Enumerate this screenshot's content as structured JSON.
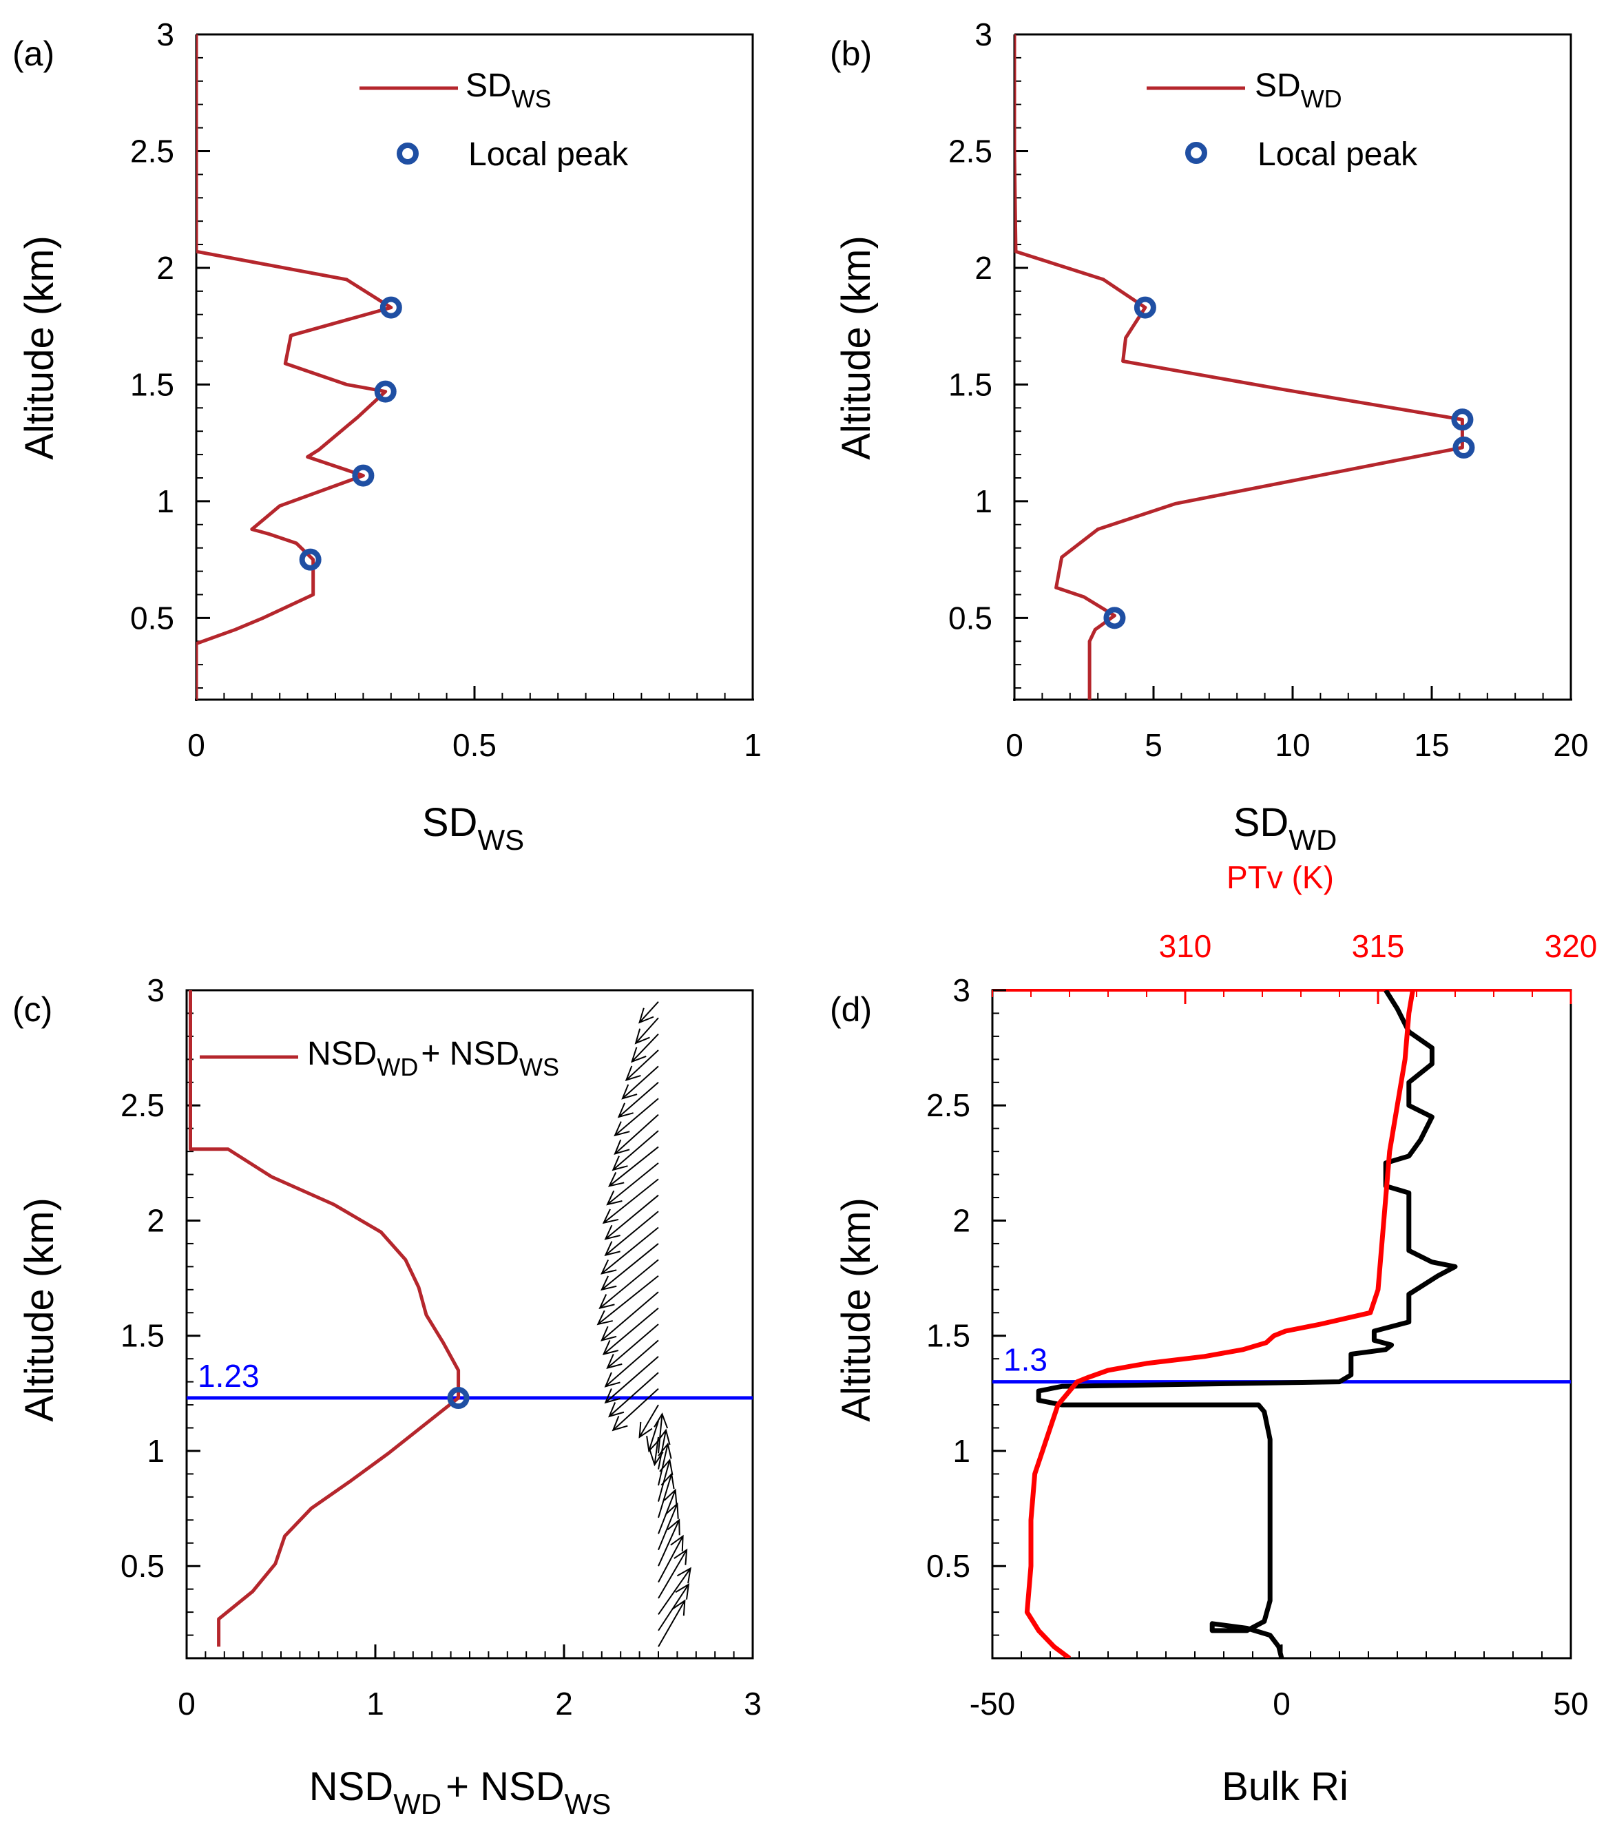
{
  "colors": {
    "profile": "#b5262c",
    "peak_marker": "#1f4fa3",
    "pbl_line": "#0000ff",
    "ptv": "#ff0000",
    "ri": "#000000",
    "wind_arrow": "#000000"
  },
  "chart_data": [
    {
      "panel_label": "(a)",
      "type": "line",
      "xlabel": {
        "main": "SD",
        "sub": "WS"
      },
      "ylabel": "Altitude (km)",
      "xlim": [
        0,
        1
      ],
      "ylim": [
        0.15,
        3
      ],
      "xticks": [
        0,
        0.5,
        1
      ],
      "xtick_labels": [
        "0",
        "0.5",
        "1"
      ],
      "yticks": [
        0.5,
        1,
        1.5,
        2,
        2.5,
        3
      ],
      "ytick_labels": [
        "0.5",
        "1",
        "1.5",
        "2",
        "2.5",
        "3"
      ],
      "legend": [
        {
          "kind": "line",
          "main": "SD",
          "sub": "WS"
        },
        {
          "kind": "marker",
          "main": "Local peak",
          "sub": ""
        }
      ],
      "series": [
        {
          "kind": "line",
          "x": [
            0,
            0,
            0.07,
            0.12,
            0.21,
            0.21,
            0.18,
            0.13,
            0.1,
            0.15,
            0.3,
            0.2,
            0.22,
            0.29,
            0.34,
            0.27,
            0.16,
            0.17,
            0.35,
            0.27,
            0,
            0
          ],
          "y": [
            0.15,
            0.39,
            0.45,
            0.5,
            0.6,
            0.75,
            0.82,
            0.86,
            0.88,
            0.98,
            1.11,
            1.19,
            1.22,
            1.36,
            1.47,
            1.5,
            1.59,
            1.71,
            1.83,
            1.95,
            2.07,
            3.0
          ]
        },
        {
          "kind": "markers",
          "x": [
            0.205,
            0.3,
            0.34,
            0.35
          ],
          "y": [
            0.75,
            1.11,
            1.47,
            1.83
          ]
        }
      ]
    },
    {
      "panel_label": "(b)",
      "type": "line",
      "xlabel": {
        "main": "SD",
        "sub": "WD"
      },
      "ylabel": "Altitude (km)",
      "xlim": [
        0,
        20
      ],
      "ylim": [
        0.15,
        3
      ],
      "xticks": [
        0,
        5,
        10,
        15,
        20
      ],
      "xtick_labels": [
        "0",
        "5",
        "10",
        "15",
        "20"
      ],
      "yticks": [
        0.5,
        1,
        1.5,
        2,
        2.5,
        3
      ],
      "ytick_labels": [
        "0.5",
        "1",
        "1.5",
        "2",
        "2.5",
        "3"
      ],
      "legend": [
        {
          "kind": "line",
          "main": "SD",
          "sub": "WD"
        },
        {
          "kind": "marker",
          "main": "Local peak",
          "sub": ""
        }
      ],
      "series": [
        {
          "kind": "line",
          "x": [
            2.7,
            2.7,
            2.9,
            3.6,
            2.5,
            1.5,
            1.7,
            3.0,
            5.8,
            16.1,
            16.1,
            9.6,
            3.9,
            4.0,
            4.7,
            3.2,
            0.05,
            0,
            0
          ],
          "y": [
            0.15,
            0.4,
            0.45,
            0.51,
            0.59,
            0.63,
            0.76,
            0.88,
            0.99,
            1.23,
            1.35,
            1.48,
            1.6,
            1.7,
            1.83,
            1.95,
            2.07,
            2.5,
            3.0
          ]
        },
        {
          "kind": "markers",
          "x": [
            3.6,
            16.15,
            16.1,
            4.7
          ],
          "y": [
            0.5,
            1.23,
            1.35,
            1.83
          ]
        }
      ]
    },
    {
      "panel_label": "(c)",
      "type": "line",
      "xlabel": {
        "main": "NSD",
        "sub": "WD",
        "main2": "+ NSD",
        "sub2": "WS"
      },
      "ylabel": "Altitude (km)",
      "xlim": [
        0,
        3
      ],
      "ylim": [
        0.1,
        3
      ],
      "xticks": [
        0,
        1,
        2,
        3
      ],
      "xtick_labels": [
        "0",
        "1",
        "2",
        "3"
      ],
      "yticks": [
        0.5,
        1,
        1.5,
        2,
        2.5,
        3
      ],
      "ytick_labels": [
        "0.5",
        "1",
        "1.5",
        "2",
        "2.5",
        "3"
      ],
      "legend": [
        {
          "kind": "line",
          "main": "NSD",
          "sub": "WD",
          "main2": "+ NSD",
          "sub2": "WS"
        }
      ],
      "hline": {
        "y": 1.23,
        "label": "1.23"
      },
      "series": [
        {
          "kind": "line",
          "x": [
            0.17,
            0.17,
            0.35,
            0.47,
            0.52,
            0.66,
            0.87,
            1.07,
            1.44,
            1.44,
            1.36,
            1.27,
            1.23,
            1.16,
            1.03,
            0.78,
            0.45,
            0.22,
            0.02,
            0.02
          ],
          "y": [
            0.15,
            0.27,
            0.39,
            0.51,
            0.63,
            0.75,
            0.87,
            0.99,
            1.23,
            1.35,
            1.47,
            1.59,
            1.71,
            1.83,
            1.95,
            2.07,
            2.19,
            2.31,
            2.31,
            3.0
          ]
        },
        {
          "kind": "markers",
          "x": [
            1.44
          ],
          "y": [
            1.23
          ]
        }
      ],
      "wind_arrows": {
        "y": [
          0.15,
          0.22,
          0.29,
          0.36,
          0.43,
          0.5,
          0.57,
          0.64,
          0.71,
          0.78,
          0.85,
          0.92,
          0.99,
          1.06,
          1.13,
          1.2,
          1.27,
          1.34,
          1.41,
          1.48,
          1.55,
          1.62,
          1.69,
          1.76,
          1.83,
          1.9,
          1.97,
          2.04,
          2.11,
          2.18,
          2.25,
          2.32,
          2.39,
          2.46,
          2.53,
          2.6,
          2.67,
          2.74,
          2.81,
          2.88,
          2.95
        ],
        "tail_x": [
          2.5,
          2.5,
          2.5,
          2.5,
          2.5,
          2.5,
          2.5,
          2.5,
          2.5,
          2.5,
          2.5,
          2.5,
          2.5,
          2.5,
          2.5,
          2.5,
          2.5,
          2.5,
          2.5,
          2.5,
          2.5,
          2.5,
          2.5,
          2.5,
          2.5,
          2.5,
          2.5,
          2.5,
          2.5,
          2.5,
          2.5,
          2.5,
          2.5,
          2.5,
          2.5,
          2.5,
          2.5,
          2.5,
          2.5,
          2.5,
          2.5
        ],
        "head_dx": [
          0.14,
          0.16,
          0.17,
          0.15,
          0.13,
          0.11,
          0.1,
          0.09,
          0.07,
          0.06,
          0.05,
          0.04,
          0.02,
          -0.02,
          -0.05,
          -0.1,
          -0.24,
          -0.26,
          -0.28,
          -0.28,
          -0.27,
          -0.29,
          -0.3,
          -0.32,
          -0.31,
          -0.3,
          -0.3,
          -0.28,
          -0.28,
          -0.29,
          -0.27,
          -0.26,
          -0.24,
          -0.23,
          -0.23,
          -0.21,
          -0.19,
          -0.17,
          -0.14,
          -0.12,
          -0.1
        ],
        "head_dy": [
          0.2,
          0.2,
          0.2,
          0.21,
          0.2,
          0.2,
          0.2,
          0.19,
          0.19,
          0.18,
          0.18,
          0.17,
          0.17,
          -0.12,
          -0.13,
          -0.14,
          -0.18,
          -0.19,
          -0.2,
          -0.2,
          -0.19,
          -0.2,
          -0.21,
          -0.21,
          -0.21,
          -0.2,
          -0.2,
          -0.19,
          -0.19,
          -0.19,
          -0.18,
          -0.17,
          -0.17,
          -0.17,
          -0.16,
          -0.15,
          -0.14,
          -0.13,
          -0.12,
          -0.11,
          -0.09
        ]
      }
    },
    {
      "panel_label": "(d)",
      "type": "line",
      "xlabel": "Bulk Ri",
      "ylabel": "Altitude (km)",
      "xlim": [
        -50,
        50
      ],
      "ylim": [
        0.1,
        3
      ],
      "xticks": [
        -50,
        0,
        50
      ],
      "xtick_labels": [
        "-50",
        "0",
        "50"
      ],
      "yticks": [
        0.5,
        1,
        1.5,
        2,
        2.5,
        3
      ],
      "ytick_labels": [
        "0.5",
        "1",
        "1.5",
        "2",
        "2.5",
        "3"
      ],
      "x2label": "PTv (K)",
      "x2lim": [
        305,
        320
      ],
      "x2ticks": [
        310,
        315,
        320
      ],
      "x2tick_labels": [
        "310",
        "315",
        "320"
      ],
      "hline": {
        "y": 1.3,
        "label": "1.3"
      },
      "series": [
        {
          "name": "Bulk Ri",
          "kind": "line",
          "axis": "bottom",
          "x": [
            0,
            -0.5,
            -2,
            -6,
            -12,
            -12,
            -6,
            -3,
            -2,
            -2,
            -2,
            -2,
            -3,
            -4,
            -38,
            -42,
            -42,
            -38,
            10,
            12,
            12,
            18,
            19,
            16,
            16,
            22,
            22,
            27,
            30,
            26,
            22,
            22,
            18,
            18,
            22,
            24,
            26,
            22,
            22,
            26,
            26,
            22,
            20,
            18
          ],
          "y": [
            0.1,
            0.15,
            0.2,
            0.23,
            0.25,
            0.22,
            0.22,
            0.26,
            0.35,
            0.6,
            0.85,
            1.05,
            1.17,
            1.2,
            1.2,
            1.22,
            1.26,
            1.28,
            1.3,
            1.33,
            1.42,
            1.44,
            1.46,
            1.48,
            1.52,
            1.56,
            1.68,
            1.76,
            1.8,
            1.82,
            1.87,
            2.12,
            2.15,
            2.25,
            2.28,
            2.35,
            2.45,
            2.5,
            2.6,
            2.68,
            2.75,
            2.82,
            2.92,
            3.0
          ]
        },
        {
          "name": "PTv",
          "kind": "line",
          "axis": "top",
          "x": [
            307.0,
            306.6,
            306.2,
            305.9,
            306.0,
            306.0,
            306.1,
            306.3,
            306.5,
            306.7,
            307.0,
            307.2,
            307.5,
            308.0,
            309.0,
            310.5,
            311.5,
            312.1,
            312.3,
            312.6,
            313.5,
            314.8,
            315.0,
            315.1,
            315.2,
            315.3,
            315.5,
            315.7,
            315.8,
            315.9
          ],
          "y": [
            0.1,
            0.15,
            0.22,
            0.3,
            0.5,
            0.7,
            0.9,
            1.0,
            1.1,
            1.2,
            1.26,
            1.3,
            1.32,
            1.35,
            1.38,
            1.41,
            1.44,
            1.47,
            1.5,
            1.52,
            1.55,
            1.6,
            1.7,
            1.9,
            2.1,
            2.3,
            2.5,
            2.7,
            2.9,
            3.0
          ]
        }
      ]
    }
  ]
}
